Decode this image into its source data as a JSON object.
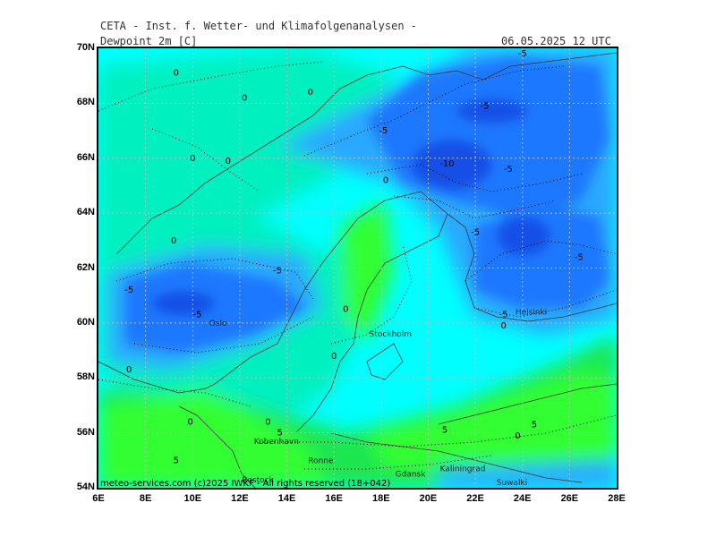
{
  "header": {
    "title": "CETA - Inst. f. Wetter- und Klimafolgenanalysen -",
    "parameter": "Dewpoint_2m_[C]",
    "datetime": "06.05.2025 12 UTC"
  },
  "axes": {
    "lat_labels": [
      "70N",
      "68N",
      "66N",
      "64N",
      "62N",
      "60N",
      "58N",
      "56N",
      "54N"
    ],
    "lon_labels": [
      "6E",
      "8E",
      "10E",
      "12E",
      "14E",
      "16E",
      "18E",
      "20E",
      "22E",
      "24E",
      "26E",
      "28E"
    ]
  },
  "colors": {
    "cyan": "#00ffff",
    "aqua_green": "#00f0c0",
    "green": "#1ee650",
    "bright_green": "#33ff33",
    "lightblue": "#2aa8ff",
    "blue": "#1e78ff",
    "darkblue": "#1450e6"
  },
  "contour_labels": [
    {
      "text": "0",
      "lon": 9.3,
      "lat": 69.0
    },
    {
      "text": "0",
      "lon": 12.2,
      "lat": 68.1
    },
    {
      "text": "0",
      "lon": 15.0,
      "lat": 68.3
    },
    {
      "text": "-5",
      "lon": 24.0,
      "lat": 69.7
    },
    {
      "text": "-5",
      "lon": 22.4,
      "lat": 67.8
    },
    {
      "text": "-5",
      "lon": 18.1,
      "lat": 66.9
    },
    {
      "text": "0",
      "lon": 10.0,
      "lat": 65.9
    },
    {
      "text": "0",
      "lon": 11.5,
      "lat": 65.8
    },
    {
      "text": "-10",
      "lon": 20.8,
      "lat": 65.7
    },
    {
      "text": "-5",
      "lon": 23.4,
      "lat": 65.5
    },
    {
      "text": "0",
      "lon": 18.2,
      "lat": 65.1
    },
    {
      "text": "0",
      "lon": 9.2,
      "lat": 62.9
    },
    {
      "text": "-5",
      "lon": 22.0,
      "lat": 63.2
    },
    {
      "text": "-5",
      "lon": 26.4,
      "lat": 62.3
    },
    {
      "text": "-5",
      "lon": 13.6,
      "lat": 61.8
    },
    {
      "text": "-5",
      "lon": 7.3,
      "lat": 61.1
    },
    {
      "text": "-5",
      "lon": 10.2,
      "lat": 60.2
    },
    {
      "text": "0",
      "lon": 16.5,
      "lat": 60.4
    },
    {
      "text": "-5",
      "lon": 23.2,
      "lat": 60.2
    },
    {
      "text": "0",
      "lon": 23.2,
      "lat": 59.8
    },
    {
      "text": "0",
      "lon": 7.3,
      "lat": 58.2
    },
    {
      "text": "0",
      "lon": 16.0,
      "lat": 58.7
    },
    {
      "text": "0",
      "lon": 9.9,
      "lat": 56.3
    },
    {
      "text": "0",
      "lon": 13.2,
      "lat": 56.3
    },
    {
      "text": "5",
      "lon": 13.7,
      "lat": 55.9
    },
    {
      "text": "5",
      "lon": 20.7,
      "lat": 56.0
    },
    {
      "text": "5",
      "lon": 24.5,
      "lat": 56.2
    },
    {
      "text": "0",
      "lon": 23.8,
      "lat": 55.8
    },
    {
      "text": "5",
      "lon": 9.3,
      "lat": 54.9
    }
  ],
  "cities": [
    {
      "name": "Oslo",
      "lon": 10.7,
      "lat": 59.9
    },
    {
      "name": "Stockholm",
      "lon": 17.5,
      "lat": 59.5
    },
    {
      "name": "Helsinki",
      "lon": 23.7,
      "lat": 60.3
    },
    {
      "name": "Kobenhavn",
      "lon": 12.6,
      "lat": 55.6
    },
    {
      "name": "Ronne",
      "lon": 14.9,
      "lat": 54.9
    },
    {
      "name": "Rostock",
      "lon": 12.1,
      "lat": 54.2
    },
    {
      "name": "Kaliningrad",
      "lon": 20.5,
      "lat": 54.6
    },
    {
      "name": "Gdansk",
      "lon": 18.6,
      "lat": 54.4
    },
    {
      "name": "Suwalki",
      "lon": 22.9,
      "lat": 54.1
    }
  ],
  "footer": "meteo-services.com (c)2025 IWKF - All rights reserved (18+042)"
}
